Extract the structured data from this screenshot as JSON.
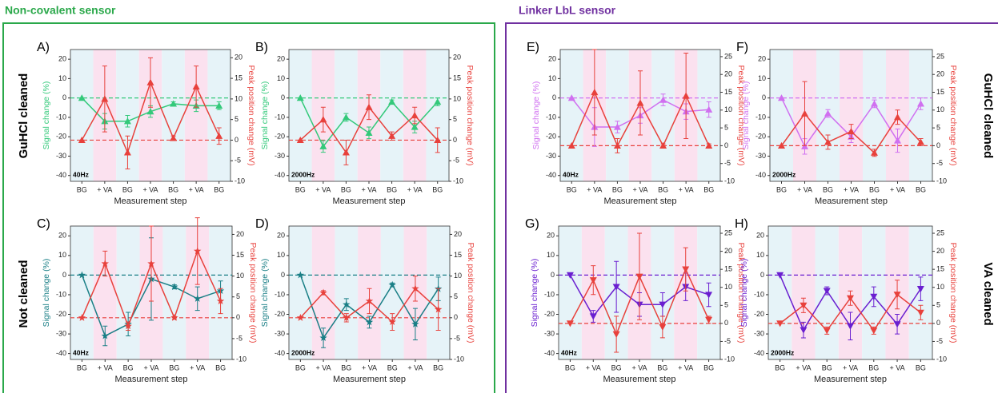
{
  "figure": {
    "groups": [
      "Non-covalent sensor",
      "Linker LbL sensor"
    ],
    "row_labels": [
      "GuHCl cleaned",
      "Not cleaned",
      "GuHCl cleaned",
      "VA cleaned"
    ]
  },
  "chart_data": [
    {
      "type": "line",
      "panel": "A)",
      "annotation": "40Hz",
      "categories": [
        "BG",
        "+ VA",
        "BG",
        "+ VA",
        "BG",
        "+ VA",
        "BG"
      ],
      "xlabel": "Measurement step",
      "ylabel": "Signal change (%)",
      "y2label": "Peak position change (mV)",
      "ylim": [
        -43,
        25
      ],
      "yticks": [
        -40,
        -30,
        -20,
        -10,
        0,
        10,
        20
      ],
      "y2lim": [
        -10,
        22
      ],
      "y2ticks": [
        -10,
        -5,
        0,
        5,
        10,
        15,
        20
      ],
      "reference_lines": [
        {
          "axis": "y",
          "value": 0
        },
        {
          "axis": "y2",
          "value": 0
        }
      ],
      "series": [
        {
          "name": "Signal change",
          "color": "#33c97a",
          "marker": "triangle-up",
          "axis": "y",
          "values": [
            0,
            -12,
            -12,
            -7,
            -3,
            -4,
            -4
          ],
          "errors": [
            0,
            4,
            3,
            3,
            1,
            3,
            2
          ]
        },
        {
          "name": "Peak position change",
          "color": "#e8413c",
          "marker": "triangle-up",
          "axis": "y2",
          "values": [
            0,
            10,
            -3,
            14,
            0.5,
            13,
            1
          ],
          "errors": [
            0,
            8,
            4,
            6,
            0.5,
            5,
            2
          ]
        }
      ]
    },
    {
      "type": "line",
      "panel": "B)",
      "annotation": "2000Hz",
      "categories": [
        "BG",
        "+ VA",
        "BG",
        "+ VA",
        "BG",
        "+ VA",
        "BG"
      ],
      "xlabel": "Measurement step",
      "ylabel": "Signal change (%)",
      "y2label": "Peak position change (mV)",
      "ylim": [
        -43,
        25
      ],
      "yticks": [
        -40,
        -30,
        -20,
        -10,
        0,
        10,
        20
      ],
      "y2lim": [
        -10,
        22
      ],
      "y2ticks": [
        -10,
        -5,
        0,
        5,
        10,
        15,
        20
      ],
      "reference_lines": [
        {
          "axis": "y",
          "value": 0
        },
        {
          "axis": "y2",
          "value": 0
        }
      ],
      "series": [
        {
          "name": "Signal change",
          "color": "#33c97a",
          "marker": "triangle-up",
          "axis": "y",
          "values": [
            0,
            -25,
            -10,
            -18,
            -2,
            -15,
            -2
          ],
          "errors": [
            0,
            3,
            2,
            3,
            1,
            3,
            2
          ]
        },
        {
          "name": "Peak position change",
          "color": "#e8413c",
          "marker": "triangle-up",
          "axis": "y2",
          "values": [
            0,
            5,
            -3,
            8,
            1,
            6,
            0
          ],
          "errors": [
            0,
            3,
            3,
            3,
            1,
            2,
            3
          ]
        }
      ]
    },
    {
      "type": "line",
      "panel": "E)",
      "annotation": "40Hz",
      "categories": [
        "BG",
        "+ VA",
        "BG",
        "+ VA",
        "BG",
        "+ VA",
        "BG"
      ],
      "xlabel": "Measurement step",
      "ylabel": "Signal change (%)",
      "y2label": "Peak position change (mV)",
      "ylim": [
        -43,
        25
      ],
      "yticks": [
        -40,
        -30,
        -20,
        -10,
        0,
        10,
        20
      ],
      "y2lim": [
        -10,
        27
      ],
      "y2ticks": [
        -10,
        -5,
        0,
        5,
        10,
        15,
        20,
        25
      ],
      "reference_lines": [
        {
          "axis": "y",
          "value": 0
        },
        {
          "axis": "y2",
          "value": 0
        }
      ],
      "series": [
        {
          "name": "Signal change",
          "color": "#d070f0",
          "marker": "triangle-up",
          "axis": "y",
          "values": [
            0,
            -15,
            -15,
            -9,
            -1,
            -7,
            -6
          ],
          "errors": [
            0,
            10,
            3,
            4,
            3,
            4,
            4
          ]
        },
        {
          "name": "Peak position change",
          "color": "#e8413c",
          "marker": "triangle-up",
          "axis": "y2",
          "values": [
            0,
            15,
            0,
            12,
            0,
            14,
            0
          ],
          "errors": [
            0,
            12,
            2,
            9,
            0.5,
            12,
            0.5
          ]
        }
      ]
    },
    {
      "type": "line",
      "panel": "F)",
      "annotation": "2000Hz",
      "categories": [
        "BG",
        "+ VA",
        "BG",
        "+ VA",
        "BG",
        "+ VA",
        "BG"
      ],
      "xlabel": "Measurement step",
      "ylabel": "Signal change (%)",
      "y2label": "Peak position change (mV)",
      "ylim": [
        -43,
        25
      ],
      "yticks": [
        -40,
        -30,
        -20,
        -10,
        0,
        10,
        20
      ],
      "y2lim": [
        -10,
        27
      ],
      "y2ticks": [
        -10,
        -5,
        0,
        5,
        10,
        15,
        20,
        25
      ],
      "reference_lines": [
        {
          "axis": "y",
          "value": 0
        },
        {
          "axis": "y2",
          "value": 0
        }
      ],
      "series": [
        {
          "name": "Signal change",
          "color": "#d070f0",
          "marker": "triangle-up",
          "axis": "y",
          "values": [
            0,
            -25,
            -8,
            -20,
            -3,
            -22,
            -3
          ],
          "errors": [
            0,
            4,
            2,
            3,
            2,
            6,
            3
          ]
        },
        {
          "name": "Peak position change",
          "color": "#e8413c",
          "marker": "triangle-up",
          "axis": "y2",
          "values": [
            0,
            9,
            1,
            4,
            -2,
            8,
            1
          ],
          "errors": [
            0,
            9,
            2,
            2,
            1,
            2,
            1
          ]
        }
      ]
    },
    {
      "type": "line",
      "panel": "C)",
      "annotation": "40Hz",
      "categories": [
        "BG",
        "+ VA",
        "BG",
        "+ VA",
        "BG",
        "+ VA",
        "BG"
      ],
      "xlabel": "Measurement step",
      "ylabel": "Signal change (%)",
      "y2label": "Peak position change (mV)",
      "ylim": [
        -43,
        25
      ],
      "yticks": [
        -40,
        -30,
        -20,
        -10,
        0,
        10,
        20
      ],
      "y2lim": [
        -10,
        22
      ],
      "y2ticks": [
        -10,
        -5,
        0,
        5,
        10,
        15,
        20
      ],
      "reference_lines": [
        {
          "axis": "y",
          "value": 0
        },
        {
          "axis": "y2",
          "value": 0
        }
      ],
      "series": [
        {
          "name": "Signal change",
          "color": "#1a7f86",
          "marker": "star",
          "axis": "y",
          "values": [
            0,
            -31,
            -25,
            -2,
            -6,
            -12,
            -8
          ],
          "errors": [
            0,
            5,
            6,
            21,
            1,
            6,
            5
          ]
        },
        {
          "name": "Peak position change",
          "color": "#e8413c",
          "marker": "star",
          "axis": "y2",
          "values": [
            0,
            13,
            -2,
            13,
            0,
            16,
            4
          ],
          "errors": [
            0,
            3,
            1,
            9,
            0.3,
            8,
            3
          ]
        }
      ]
    },
    {
      "type": "line",
      "panel": "D)",
      "annotation": "2000Hz",
      "categories": [
        "BG",
        "+ VA",
        "BG",
        "+ VA",
        "BG",
        "+ VA",
        "BG"
      ],
      "xlabel": "Measurement step",
      "ylabel": "Signal change (%)",
      "y2label": "Peak position change (mV)",
      "ylim": [
        -43,
        25
      ],
      "yticks": [
        -40,
        -30,
        -20,
        -10,
        0,
        10,
        20
      ],
      "y2lim": [
        -10,
        22
      ],
      "y2ticks": [
        -10,
        -5,
        0,
        5,
        10,
        15,
        20
      ],
      "reference_lines": [
        {
          "axis": "y",
          "value": 0
        },
        {
          "axis": "y2",
          "value": 0
        }
      ],
      "series": [
        {
          "name": "Signal change",
          "color": "#1a7f86",
          "marker": "star",
          "axis": "y",
          "values": [
            0,
            -32,
            -15,
            -24,
            -5,
            -25,
            -7
          ],
          "errors": [
            0,
            5,
            3,
            3,
            1,
            8,
            6
          ]
        },
        {
          "name": "Peak position change",
          "color": "#e8413c",
          "marker": "star",
          "axis": "y2",
          "values": [
            0,
            6,
            0,
            4,
            -1,
            7,
            2
          ],
          "errors": [
            0,
            0.5,
            1,
            3,
            2,
            3,
            5
          ]
        }
      ]
    },
    {
      "type": "line",
      "panel": "G)",
      "annotation": "40Hz",
      "categories": [
        "BG",
        "+ VA",
        "BG",
        "+ VA",
        "BG",
        "+ VA",
        "BG"
      ],
      "xlabel": "Measurement step",
      "ylabel": "Signal change (%)",
      "y2label": "Peak position change (mV)",
      "ylim": [
        -43,
        25
      ],
      "yticks": [
        -40,
        -30,
        -20,
        -10,
        0,
        10,
        20
      ],
      "y2lim": [
        -10,
        27
      ],
      "y2ticks": [
        -10,
        -5,
        0,
        5,
        10,
        15,
        20,
        25
      ],
      "reference_lines": [
        {
          "axis": "y",
          "value": 0
        },
        {
          "axis": "y2",
          "value": 0
        }
      ],
      "series": [
        {
          "name": "Signal change",
          "color": "#6a1fd0",
          "marker": "triangle-down",
          "axis": "y",
          "values": [
            0,
            -21,
            -6,
            -15,
            -15,
            -6,
            -10
          ],
          "errors": [
            0,
            3,
            13,
            6,
            6,
            7,
            6
          ]
        },
        {
          "name": "Peak position change",
          "color": "#e8413c",
          "marker": "triangle-down",
          "axis": "y2",
          "values": [
            0,
            12,
            -3,
            13,
            -1,
            15,
            1
          ],
          "errors": [
            0,
            4,
            5,
            12,
            3,
            6,
            1
          ]
        }
      ]
    },
    {
      "type": "line",
      "panel": "H)",
      "annotation": "2000Hz",
      "categories": [
        "BG",
        "+ VA",
        "BG",
        "+ VA",
        "BG",
        "+ VA",
        "BG"
      ],
      "xlabel": "Measurement step",
      "ylabel": "Signal change (%)",
      "y2label": "Peak position change (mV)",
      "ylim": [
        -43,
        25
      ],
      "yticks": [
        -40,
        -30,
        -20,
        -10,
        0,
        10,
        20
      ],
      "y2lim": [
        -10,
        27
      ],
      "y2ticks": [
        -10,
        -5,
        0,
        5,
        10,
        15,
        20,
        25
      ],
      "reference_lines": [
        {
          "axis": "y",
          "value": 0
        },
        {
          "axis": "y2",
          "value": 0
        }
      ],
      "series": [
        {
          "name": "Signal change",
          "color": "#6a1fd0",
          "marker": "triangle-down",
          "axis": "y",
          "values": [
            0,
            -28,
            -8,
            -26,
            -11,
            -25,
            -7
          ],
          "errors": [
            0,
            4,
            2,
            7,
            5,
            5,
            6
          ]
        },
        {
          "name": "Peak position change",
          "color": "#e8413c",
          "marker": "triangle-down",
          "axis": "y2",
          "values": [
            0,
            5,
            -2,
            7,
            -2,
            8,
            3
          ],
          "errors": [
            0,
            2,
            1,
            2,
            1,
            4,
            2
          ]
        }
      ]
    }
  ]
}
